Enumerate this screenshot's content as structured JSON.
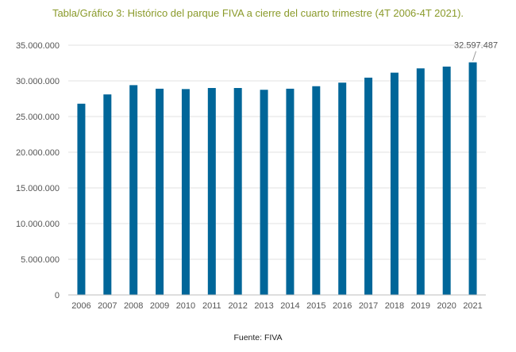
{
  "header": {
    "title": "Tabla/Gráfico 3: Histórico del parque FIVA a cierre del cuarto trimestre (4T 2006-4T 2021)."
  },
  "footer": {
    "source": "Fuente: FIVA"
  },
  "colors": {
    "bar": "#006699",
    "title": "#8a9a2a"
  },
  "chart_data": {
    "type": "bar",
    "title": "Tabla/Gráfico 3: Histórico del parque FIVA a cierre del cuarto trimestre (4T 2006-4T 2021).",
    "xlabel": "",
    "ylabel": "",
    "categories": [
      "2006",
      "2007",
      "2008",
      "2009",
      "2010",
      "2011",
      "2012",
      "2013",
      "2014",
      "2015",
      "2016",
      "2017",
      "2018",
      "2019",
      "2020",
      "2021"
    ],
    "values": [
      26800000,
      28100000,
      29400000,
      28900000,
      28850000,
      29000000,
      29000000,
      28750000,
      28900000,
      29250000,
      29750000,
      30450000,
      31150000,
      31750000,
      32000000,
      32597487
    ],
    "ylim": [
      0,
      35000000
    ],
    "yticks": [
      0,
      5000000,
      10000000,
      15000000,
      20000000,
      25000000,
      30000000,
      35000000
    ],
    "ytick_labels": [
      "0",
      "5.000.000",
      "10.000.000",
      "15.000.000",
      "20.000.000",
      "25.000.000",
      "30.000.000",
      "35.000.000"
    ],
    "grid": true,
    "legend": "none",
    "annotations": [
      {
        "category": "2021",
        "text": "32.597.487"
      }
    ]
  }
}
